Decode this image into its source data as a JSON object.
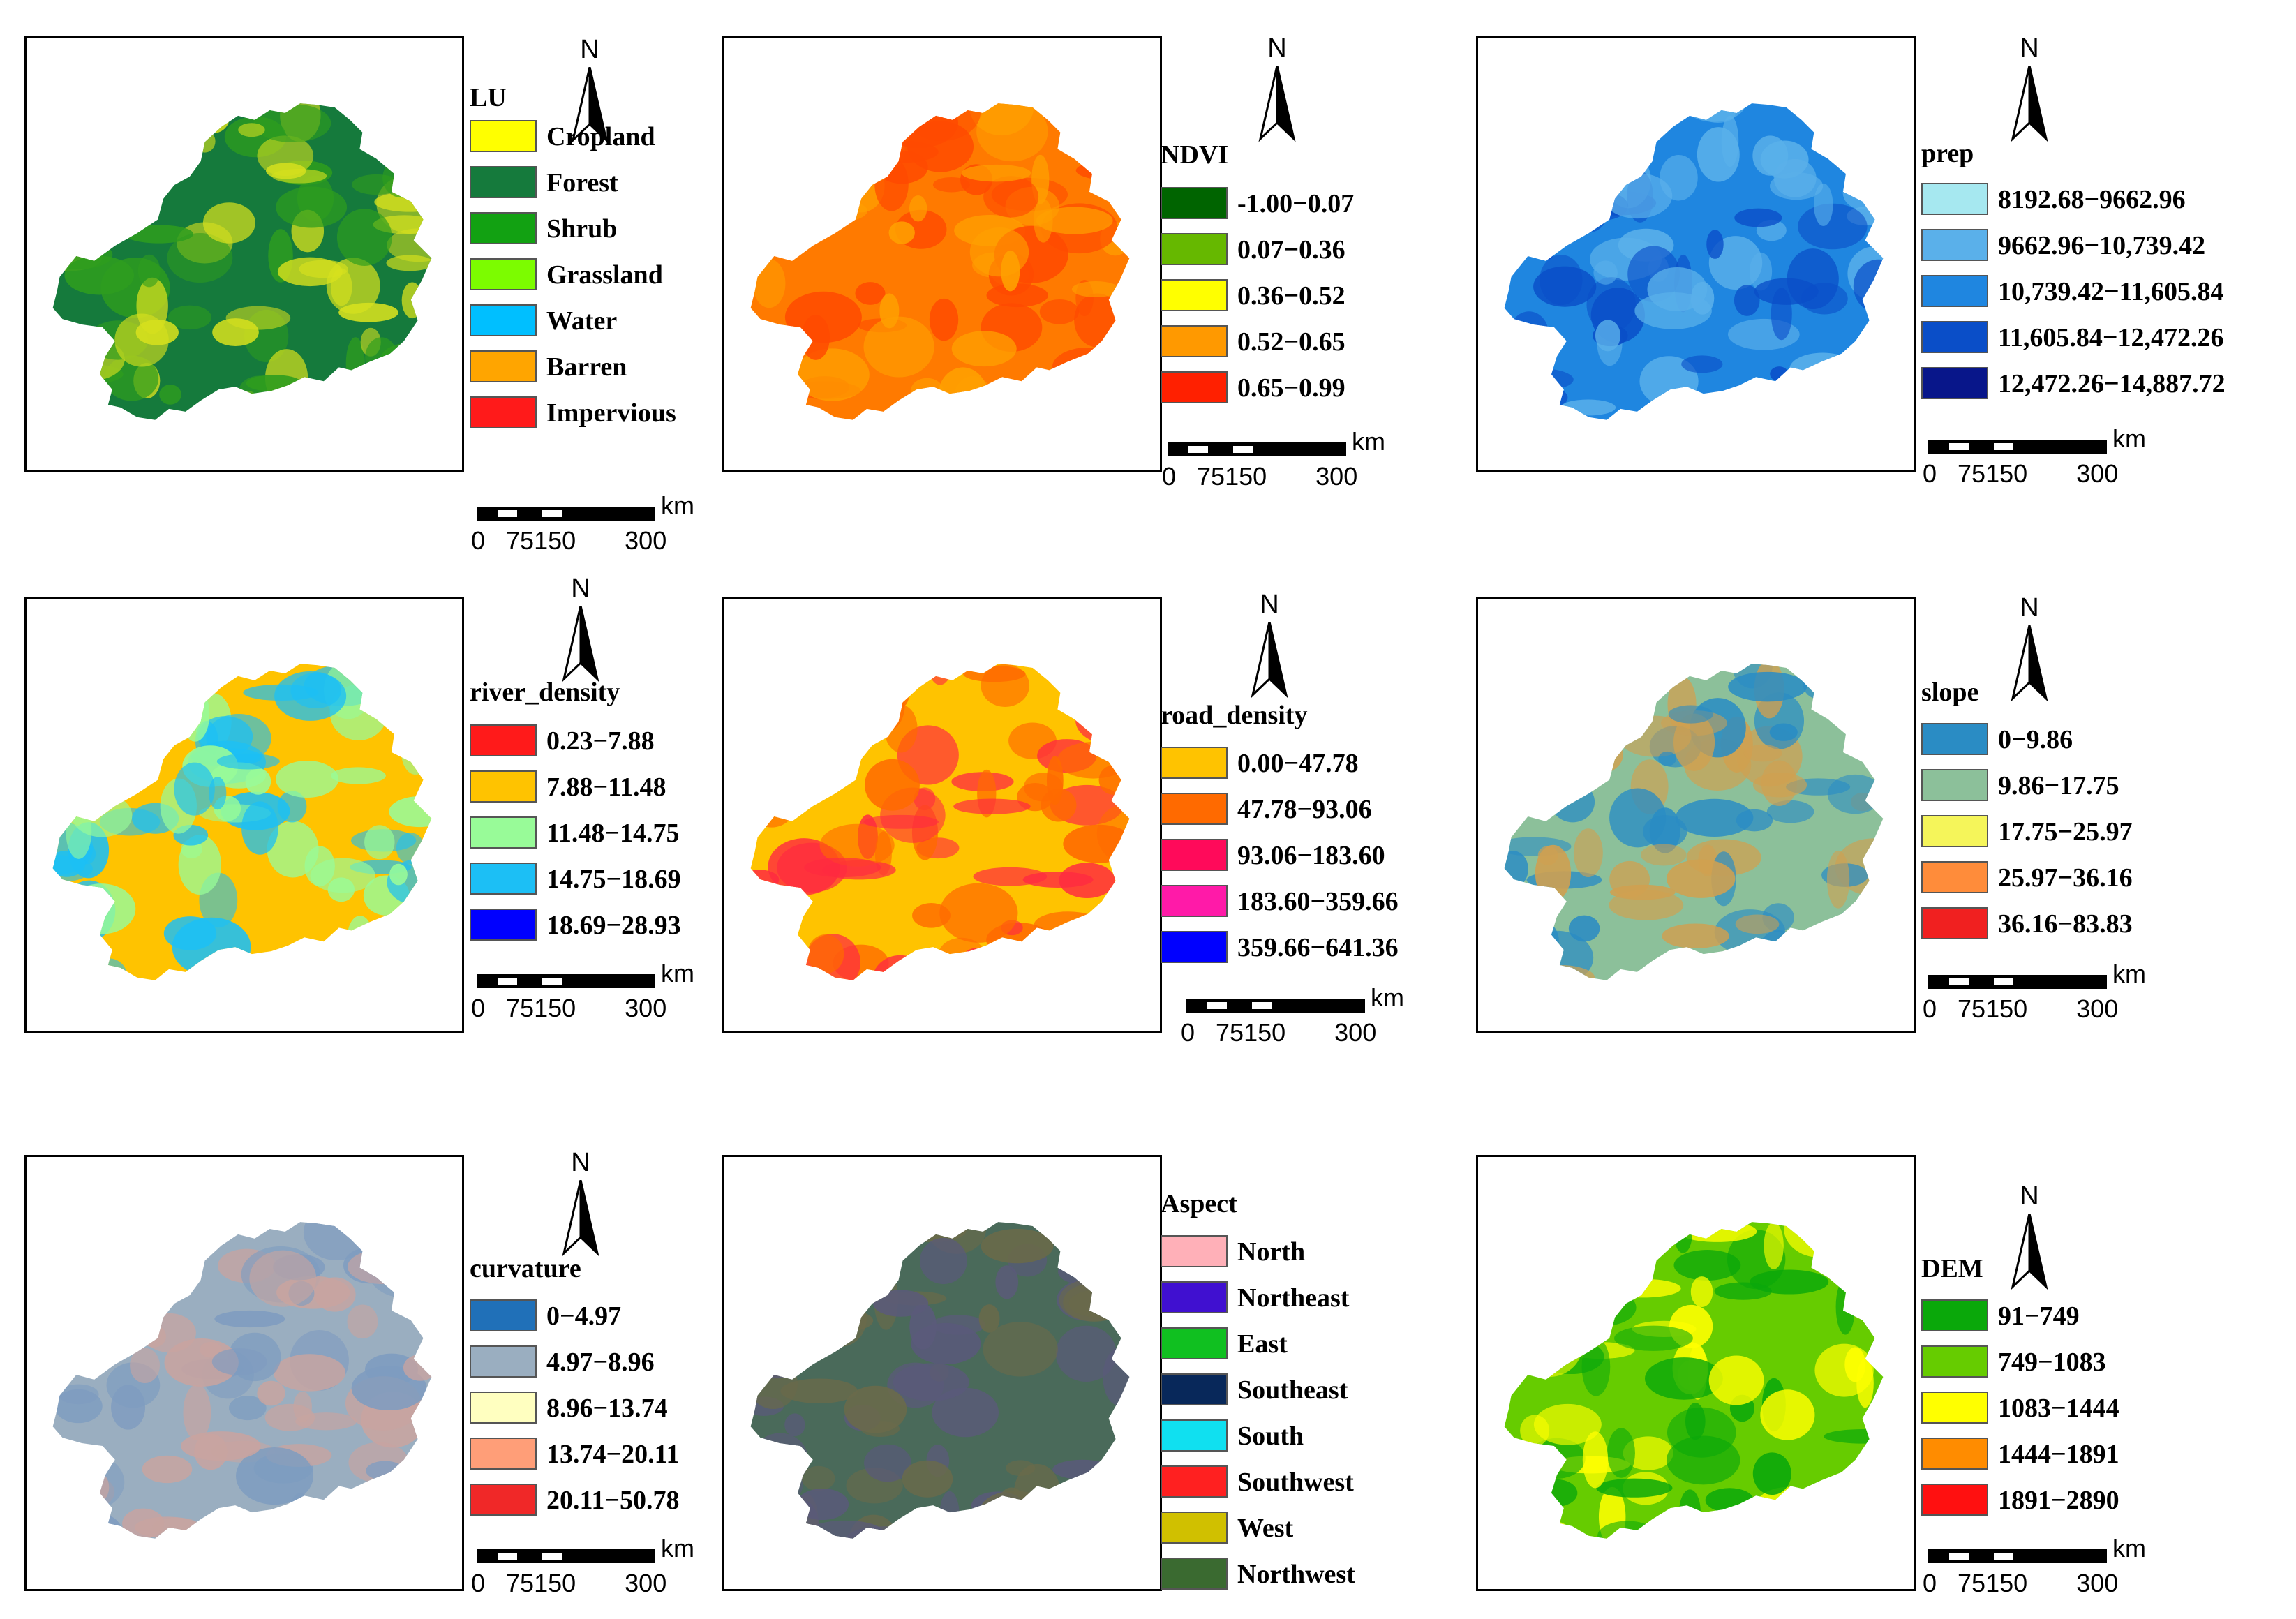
{
  "panels": [
    {
      "title": "LU",
      "items": [
        {
          "label": "Cropland",
          "color": "#ffff00"
        },
        {
          "label": "Forest",
          "color": "#157a3c"
        },
        {
          "label": "Shrub",
          "color": "#12a112"
        },
        {
          "label": "Grassland",
          "color": "#7cfc00"
        },
        {
          "label": "Water",
          "color": "#00bfff"
        },
        {
          "label": "Barren",
          "color": "#ffa500"
        },
        {
          "label": "Impervious",
          "color": "#ff1a1a"
        }
      ],
      "map_colors": [
        "#157a3c",
        "#2e9d1e",
        "#d6e01e"
      ]
    },
    {
      "title": "NDVI",
      "items": [
        {
          "label": "-1.00−0.07",
          "color": "#006400"
        },
        {
          "label": "0.07−0.36",
          "color": "#66b800"
        },
        {
          "label": "0.36−0.52",
          "color": "#ffff00"
        },
        {
          "label": "0.52−0.65",
          "color": "#ff9900"
        },
        {
          "label": "0.65−0.99",
          "color": "#ff2000"
        }
      ],
      "map_colors": [
        "#ff7a00",
        "#ff4a00",
        "#ffa000"
      ]
    },
    {
      "title": "prep",
      "items": [
        {
          "label": "8192.68−9662.96",
          "color": "#a6e8f0"
        },
        {
          "label": "9662.96−10,739.42",
          "color": "#5ab0ea"
        },
        {
          "label": "10,739.42−11,605.84",
          "color": "#1f86e0"
        },
        {
          "label": "11,605.84−12,472.26",
          "color": "#0a4ec8"
        },
        {
          "label": "12,472.26−14,887.72",
          "color": "#08168a"
        }
      ],
      "map_colors": [
        "#1f86e0",
        "#0a4ec8",
        "#5ab0ea"
      ]
    },
    {
      "title": "river_density",
      "items": [
        {
          "label": "0.23−7.88",
          "color": "#ff1a1a"
        },
        {
          "label": "7.88−11.48",
          "color": "#ffc300"
        },
        {
          "label": "11.48−14.75",
          "color": "#98fb98"
        },
        {
          "label": "14.75−18.69",
          "color": "#1cbff5"
        },
        {
          "label": "18.69−28.93",
          "color": "#0000ff"
        }
      ],
      "map_colors": [
        "#ffc300",
        "#98fb98",
        "#1cbff5"
      ]
    },
    {
      "title": "road_density",
      "items": [
        {
          "label": "0.00−47.78",
          "color": "#ffc300"
        },
        {
          "label": "47.78−93.06",
          "color": "#ff6a00"
        },
        {
          "label": "93.06−183.60",
          "color": "#ff0a5a"
        },
        {
          "label": "183.60−359.66",
          "color": "#ff1aa8"
        },
        {
          "label": "359.66−641.36",
          "color": "#0000ff"
        }
      ],
      "map_colors": [
        "#ffc300",
        "#ff6a00",
        "#ff2a40"
      ]
    },
    {
      "title": "slope",
      "items": [
        {
          "label": "0−9.86",
          "color": "#2a8cc4"
        },
        {
          "label": "9.86−17.75",
          "color": "#8cc09a"
        },
        {
          "label": "17.75−25.97",
          "color": "#f5f55a"
        },
        {
          "label": "25.97−36.16",
          "color": "#ff8c3a"
        },
        {
          "label": "36.16−83.83",
          "color": "#f02020"
        }
      ],
      "map_colors": [
        "#8cc09a",
        "#2a8cc4",
        "#d0a050"
      ]
    },
    {
      "title": "curvature",
      "items": [
        {
          "label": "0−4.97",
          "color": "#2070b8"
        },
        {
          "label": "4.97−8.96",
          "color": "#9aaec0"
        },
        {
          "label": "8.96−13.74",
          "color": "#ffffc0"
        },
        {
          "label": "13.74−20.11",
          "color": "#ff9e78"
        },
        {
          "label": "20.11−50.78",
          "color": "#f02828"
        }
      ],
      "map_colors": [
        "#9aaec0",
        "#7e9cc0",
        "#c8a4a0"
      ]
    },
    {
      "title": "Aspect",
      "items": [
        {
          "label": "North",
          "color": "#ffb0b8"
        },
        {
          "label": "Northeast",
          "color": "#4010d0"
        },
        {
          "label": "East",
          "color": "#10c020"
        },
        {
          "label": "Southeast",
          "color": "#08285a"
        },
        {
          "label": "South",
          "color": "#10e0f0"
        },
        {
          "label": "Southwest",
          "color": "#ff2020"
        },
        {
          "label": "West",
          "color": "#d0c000"
        },
        {
          "label": "Northwest",
          "color": "#3a6a30"
        }
      ],
      "map_colors": [
        "#4a6a5a",
        "#5a5a7a",
        "#6a6a4a"
      ]
    },
    {
      "title": "DEM",
      "items": [
        {
          "label": "91−749",
          "color": "#0aa80a"
        },
        {
          "label": "749−1083",
          "color": "#66cc00"
        },
        {
          "label": "1083−1444",
          "color": "#ffff00"
        },
        {
          "label": "1444−1891",
          "color": "#ff8c00"
        },
        {
          "label": "1891−2890",
          "color": "#ff1010"
        }
      ],
      "map_colors": [
        "#66cc00",
        "#ffff00",
        "#0aa80a"
      ]
    }
  ],
  "north_label": "N",
  "scale": {
    "unit": "km",
    "ticks": "0   75150       300"
  }
}
